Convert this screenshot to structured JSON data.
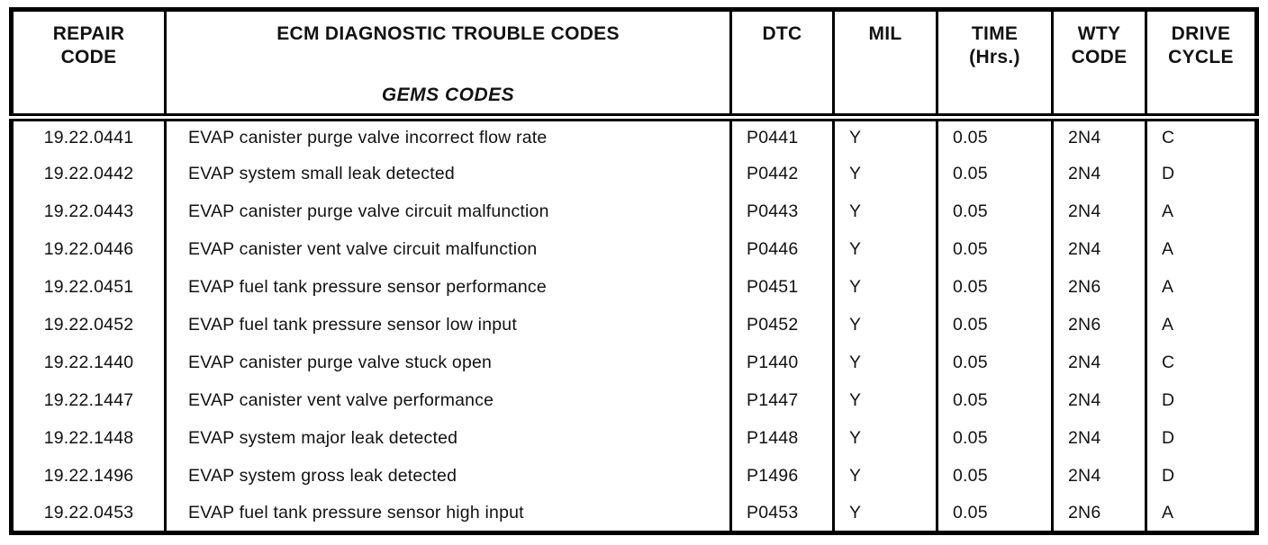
{
  "table": {
    "headers": {
      "repair_code": "REPAIR\nCODE",
      "ecm_title": "ECM DIAGNOSTIC TROUBLE CODES",
      "ecm_subtitle": "GEMS CODES",
      "dtc": "DTC",
      "mil": "MIL",
      "time": "TIME\n(Hrs.)",
      "wty": "WTY\nCODE",
      "drive": "DRIVE\nCYCLE"
    },
    "rows": [
      {
        "repair_code": "19.22.0441",
        "description": "EVAP canister purge valve incorrect flow rate",
        "dtc": "P0441",
        "mil": "Y",
        "time_hrs": "0.05",
        "wty_code": "2N4",
        "drive_cycle": "C"
      },
      {
        "repair_code": "19.22.0442",
        "description": "EVAP system small leak detected",
        "dtc": "P0442",
        "mil": "Y",
        "time_hrs": "0.05",
        "wty_code": "2N4",
        "drive_cycle": "D"
      },
      {
        "repair_code": "19.22.0443",
        "description": "EVAP canister purge valve circuit malfunction",
        "dtc": "P0443",
        "mil": "Y",
        "time_hrs": "0.05",
        "wty_code": "2N4",
        "drive_cycle": "A"
      },
      {
        "repair_code": "19.22.0446",
        "description": "EVAP canister vent valve circuit malfunction",
        "dtc": "P0446",
        "mil": "Y",
        "time_hrs": "0.05",
        "wty_code": "2N4",
        "drive_cycle": "A"
      },
      {
        "repair_code": "19.22.0451",
        "description": "EVAP fuel tank pressure sensor performance",
        "dtc": "P0451",
        "mil": "Y",
        "time_hrs": "0.05",
        "wty_code": "2N6",
        "drive_cycle": "A"
      },
      {
        "repair_code": "19.22.0452",
        "description": "EVAP fuel tank pressure sensor low input",
        "dtc": "P0452",
        "mil": "Y",
        "time_hrs": "0.05",
        "wty_code": "2N6",
        "drive_cycle": "A"
      },
      {
        "repair_code": "19.22.1440",
        "description": "EVAP canister purge valve stuck open",
        "dtc": "P1440",
        "mil": "Y",
        "time_hrs": "0.05",
        "wty_code": "2N4",
        "drive_cycle": "C"
      },
      {
        "repair_code": "19.22.1447",
        "description": "EVAP canister vent valve performance",
        "dtc": "P1447",
        "mil": "Y",
        "time_hrs": "0.05",
        "wty_code": "2N4",
        "drive_cycle": "D"
      },
      {
        "repair_code": "19.22.1448",
        "description": "EVAP system major leak detected",
        "dtc": "P1448",
        "mil": "Y",
        "time_hrs": "0.05",
        "wty_code": "2N4",
        "drive_cycle": "D"
      },
      {
        "repair_code": "19.22.1496",
        "description": "EVAP system gross leak detected",
        "dtc": "P1496",
        "mil": "Y",
        "time_hrs": "0.05",
        "wty_code": "2N4",
        "drive_cycle": "D"
      },
      {
        "repair_code": "19.22.0453",
        "description": "EVAP fuel tank pressure sensor high input",
        "dtc": "P0453",
        "mil": "Y",
        "time_hrs": "0.05",
        "wty_code": "2N6",
        "drive_cycle": "A"
      }
    ]
  },
  "colors": {
    "border": "#000000",
    "text": "#121212",
    "background": "#ffffff"
  }
}
